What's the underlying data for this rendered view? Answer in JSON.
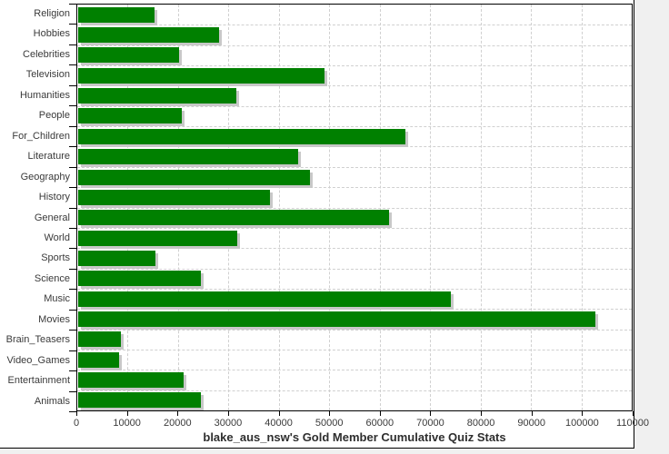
{
  "chart_data": {
    "type": "bar",
    "orientation": "horizontal",
    "title": "blake_aus_nsw's Gold Member Cumulative Quiz Stats",
    "categories": [
      "Religion",
      "Hobbies",
      "Celebrities",
      "Television",
      "Humanities",
      "People",
      "For_Children",
      "Literature",
      "Geography",
      "History",
      "General",
      "World",
      "Sports",
      "Science",
      "Music",
      "Movies",
      "Brain_Teasers",
      "Video_Games",
      "Entertainment",
      "Animals"
    ],
    "values": [
      15200,
      27900,
      20000,
      48800,
      31400,
      20500,
      64900,
      43600,
      45900,
      38100,
      61600,
      31500,
      15300,
      24400,
      74000,
      102600,
      8500,
      8200,
      21000,
      24300
    ],
    "xlabel": "",
    "ylabel": "",
    "xlim": [
      0,
      110000
    ],
    "x_ticks": [
      0,
      10000,
      20000,
      30000,
      40000,
      50000,
      60000,
      70000,
      80000,
      90000,
      100000,
      110000
    ],
    "x_tick_labels": [
      "0",
      "10000",
      "20000",
      "30000",
      "40000",
      "50000",
      "60000",
      "70000",
      "80000",
      "90000",
      "100000",
      "110000"
    ],
    "grid": true,
    "legend": false,
    "theme": {
      "bar_color": "#008000",
      "bar_shadow_color": "#c8c8c8",
      "grid_color": "#d0d0d0",
      "axis_color": "#000000",
      "text_color": "#3a3a3a",
      "background": "#ffffff"
    }
  }
}
